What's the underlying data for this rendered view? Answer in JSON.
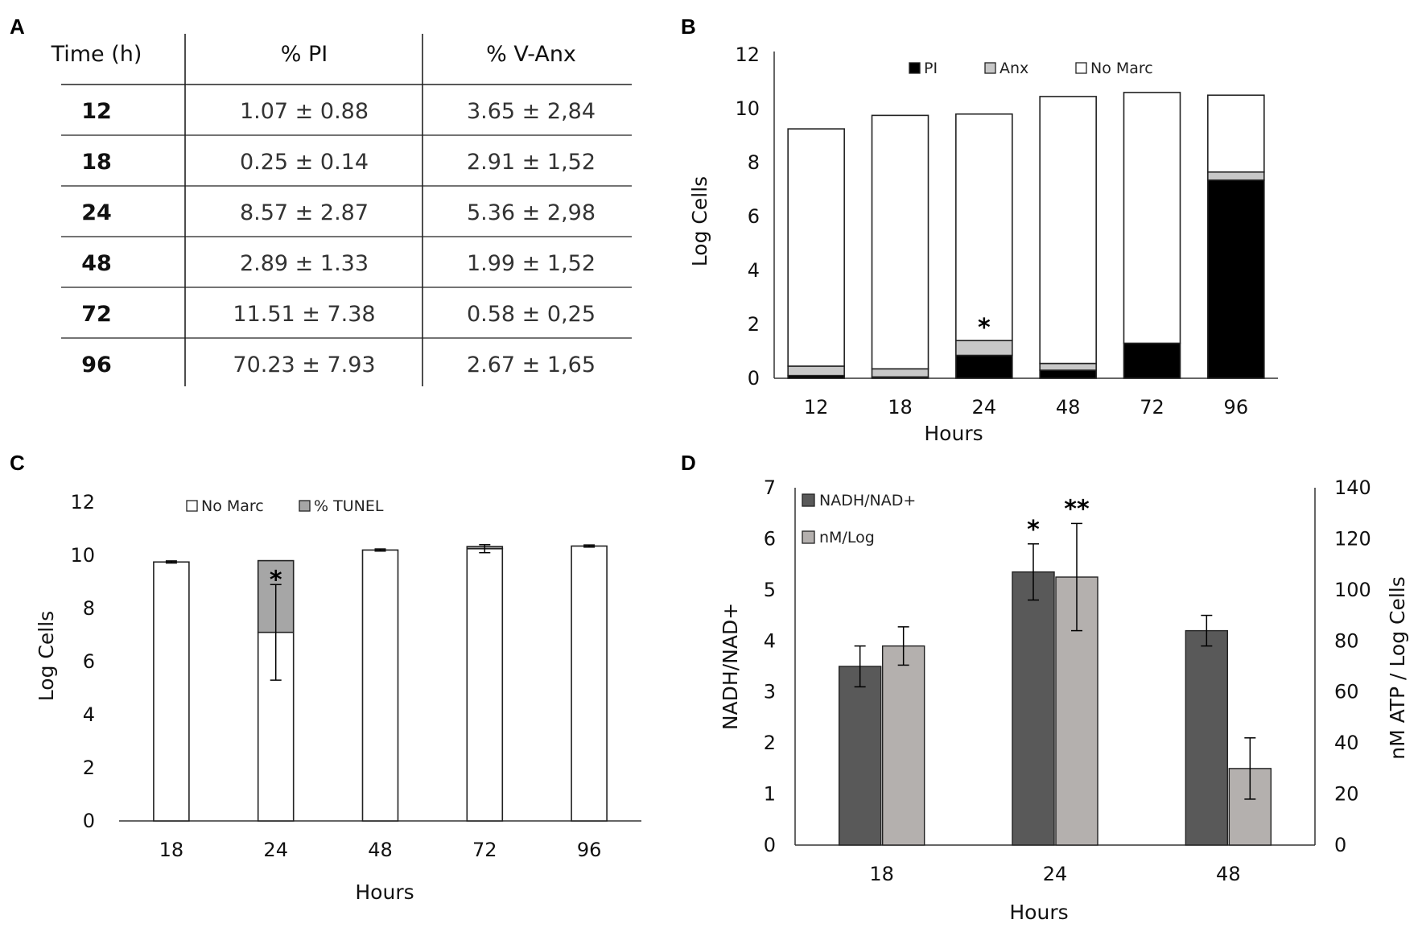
{
  "panels": {
    "A": "A",
    "B": "B",
    "C": "C",
    "D": "D"
  },
  "colors": {
    "pi": "#000000",
    "anx": "#c8c8c8",
    "no_marc": "#ffffff",
    "tunel": "#a6a6a6",
    "nadh": "#595959",
    "atp": "#b4b0ae",
    "outline": "#222222"
  },
  "chart_data": [
    {
      "id": "A",
      "type": "table",
      "columns": [
        "Time (h)",
        "% PI",
        "% V-Anx"
      ],
      "rows": [
        [
          "12",
          "1.07 ± 0.88",
          "3.65 ± 2,84"
        ],
        [
          "18",
          "0.25 ± 0.14",
          "2.91 ± 1,52"
        ],
        [
          "24",
          "8.57 ± 2.87",
          "5.36 ± 2,98"
        ],
        [
          "48",
          "2.89 ± 1.33",
          "1.99 ± 1,52"
        ],
        [
          "72",
          "11.51 ± 7.38",
          "0.58 ± 0,25"
        ],
        [
          "96",
          "70.23 ± 7.93",
          "2.67 ± 1,65"
        ]
      ]
    },
    {
      "id": "B",
      "type": "bar",
      "stacked": true,
      "categories": [
        "12",
        "18",
        "24",
        "48",
        "72",
        "96"
      ],
      "series": [
        {
          "name": "PI",
          "color_key": "pi",
          "values": [
            0.1,
            0.05,
            0.85,
            0.3,
            1.3,
            7.35
          ]
        },
        {
          "name": "Anx",
          "color_key": "anx",
          "values": [
            0.35,
            0.3,
            0.55,
            0.25,
            0.0,
            0.3
          ]
        },
        {
          "name": "No Marc",
          "color_key": "no_marc",
          "values": [
            8.8,
            9.4,
            8.4,
            9.9,
            9.3,
            2.85
          ]
        }
      ],
      "annotations": [
        {
          "category": "24",
          "text": "*"
        }
      ],
      "xlabel": "Hours",
      "ylabel": "Log Cells",
      "ylim": [
        0,
        12
      ],
      "yticks": [
        0,
        2,
        4,
        6,
        8,
        10,
        12
      ],
      "legend": "top-center"
    },
    {
      "id": "C",
      "type": "bar",
      "stacked": true,
      "categories": [
        "18",
        "24",
        "48",
        "72",
        "96"
      ],
      "series": [
        {
          "name": "No Marc",
          "color_key": "no_marc",
          "values": [
            9.75,
            7.1,
            10.2,
            10.25,
            10.35
          ],
          "errors": [
            0.04,
            1.8,
            0.04,
            0.15,
            0.04
          ]
        },
        {
          "name": "% TUNEL",
          "color_key": "tunel",
          "values": [
            0.0,
            2.7,
            0.0,
            0.08,
            0.0
          ],
          "errors": [
            0,
            0,
            0,
            0,
            0
          ]
        }
      ],
      "annotations": [
        {
          "category": "24",
          "text": "*"
        }
      ],
      "xlabel": "Hours",
      "ylabel": "Log Cells",
      "ylim": [
        0,
        12
      ],
      "yticks": [
        0,
        2,
        4,
        6,
        8,
        10,
        12
      ],
      "legend": "top-center"
    },
    {
      "id": "D",
      "type": "bar",
      "categories": [
        "18",
        "24",
        "48"
      ],
      "series": [
        {
          "name": "NADH/NAD+",
          "color_key": "nadh",
          "axis": "left",
          "values": [
            3.5,
            5.35,
            4.2
          ],
          "errors": [
            0.4,
            0.55,
            0.3
          ]
        },
        {
          "name": "nM/Log",
          "color_key": "atp",
          "axis": "right",
          "values": [
            78,
            105,
            30
          ],
          "errors": [
            7.5,
            21,
            12
          ]
        }
      ],
      "annotations": [
        {
          "category": "24",
          "series": "NADH/NAD+",
          "text": "*"
        },
        {
          "category": "24",
          "series": "nM/Log",
          "text": "**"
        }
      ],
      "xlabel": "Hours",
      "ylabel": "NADH/NAD+",
      "ylabel_right": "nM ATP / Log Cells",
      "ylim": [
        0,
        7
      ],
      "ylim_right": [
        0,
        140
      ],
      "yticks": [
        0,
        1,
        2,
        3,
        4,
        5,
        6,
        7
      ],
      "yticks_right": [
        0,
        20,
        40,
        60,
        80,
        100,
        120,
        140
      ],
      "legend": "top-left"
    }
  ]
}
